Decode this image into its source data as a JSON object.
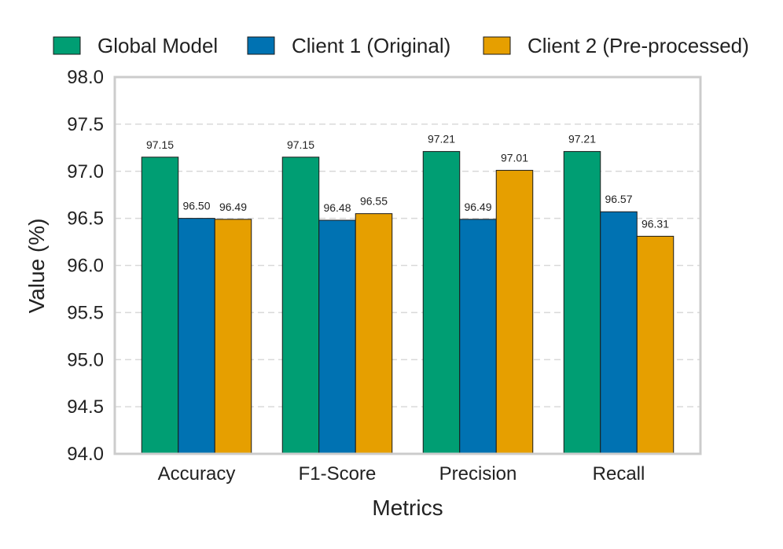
{
  "chart_data": {
    "type": "bar",
    "title": "",
    "xlabel": "Metrics",
    "ylabel": "Value (%)",
    "ylim": [
      94.0,
      98.0
    ],
    "yticks": [
      "94.0",
      "94.5",
      "95.0",
      "95.5",
      "96.0",
      "96.5",
      "97.0",
      "97.5",
      "98.0"
    ],
    "grid": "horizontal dashed",
    "legend_position": "top",
    "categories": [
      "Accuracy",
      "F1-Score",
      "Precision",
      "Recall"
    ],
    "series": [
      {
        "name": "Global Model",
        "color": "#009E73",
        "values": [
          97.15,
          97.15,
          97.21,
          97.21
        ],
        "labels": [
          "97.15",
          "97.15",
          "97.21",
          "97.21"
        ]
      },
      {
        "name": "Client 1 (Original)",
        "color": "#0072B2",
        "values": [
          96.5,
          96.48,
          96.49,
          96.57
        ],
        "labels": [
          "96.50",
          "96.48",
          "96.49",
          "96.57"
        ]
      },
      {
        "name": "Client 2 (Pre-processed)",
        "color": "#E69F00",
        "values": [
          96.49,
          96.55,
          97.01,
          96.31
        ],
        "labels": [
          "96.49",
          "96.55",
          "97.01",
          "96.31"
        ]
      }
    ]
  }
}
